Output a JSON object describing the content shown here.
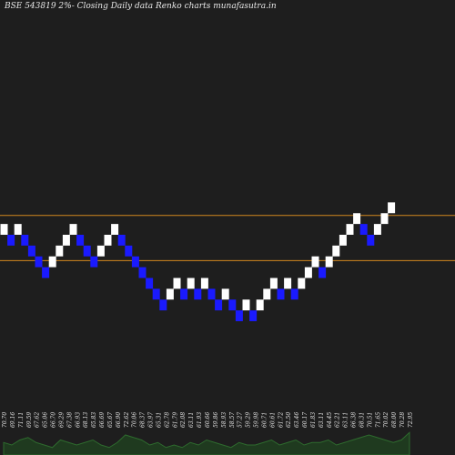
{
  "chart_data": {
    "type": "renko",
    "title": "BSE 543819 2%-  Closing Daily data  Renko  charts munafasutra.in",
    "colors": {
      "background": "#1e1e1e",
      "up_brick": "#ffffff",
      "down_brick": "#1a1aff",
      "hline": "#d2881e",
      "volume": "#1f3a1f",
      "volume_line": "#2e6b2e",
      "text": "#e8e8e8"
    },
    "bricks": [
      {
        "dir": "up",
        "price": 70.15
      },
      {
        "dir": "down",
        "price": 68.75
      },
      {
        "dir": "up",
        "price": 70.15
      },
      {
        "dir": "down",
        "price": 68.75
      },
      {
        "dir": "down",
        "price": 67.35
      },
      {
        "dir": "down",
        "price": 65.95
      },
      {
        "dir": "down",
        "price": 64.55
      },
      {
        "dir": "up",
        "price": 65.95
      },
      {
        "dir": "up",
        "price": 67.35
      },
      {
        "dir": "up",
        "price": 68.75
      },
      {
        "dir": "up",
        "price": 70.15
      },
      {
        "dir": "down",
        "price": 68.75
      },
      {
        "dir": "down",
        "price": 67.35
      },
      {
        "dir": "down",
        "price": 65.95
      },
      {
        "dir": "up",
        "price": 67.35
      },
      {
        "dir": "up",
        "price": 68.75
      },
      {
        "dir": "up",
        "price": 70.15
      },
      {
        "dir": "down",
        "price": 68.75
      },
      {
        "dir": "down",
        "price": 67.35
      },
      {
        "dir": "down",
        "price": 65.95
      },
      {
        "dir": "down",
        "price": 64.55
      },
      {
        "dir": "down",
        "price": 63.15
      },
      {
        "dir": "down",
        "price": 61.75
      },
      {
        "dir": "down",
        "price": 60.35
      },
      {
        "dir": "up",
        "price": 61.75
      },
      {
        "dir": "up",
        "price": 63.15
      },
      {
        "dir": "down",
        "price": 61.75
      },
      {
        "dir": "up",
        "price": 63.15
      },
      {
        "dir": "down",
        "price": 61.75
      },
      {
        "dir": "up",
        "price": 63.15
      },
      {
        "dir": "down",
        "price": 61.75
      },
      {
        "dir": "down",
        "price": 60.35
      },
      {
        "dir": "up",
        "price": 61.75
      },
      {
        "dir": "down",
        "price": 60.35
      },
      {
        "dir": "down",
        "price": 58.95
      },
      {
        "dir": "up",
        "price": 60.35
      },
      {
        "dir": "down",
        "price": 58.95
      },
      {
        "dir": "up",
        "price": 60.35
      },
      {
        "dir": "up",
        "price": 61.75
      },
      {
        "dir": "up",
        "price": 63.15
      },
      {
        "dir": "down",
        "price": 61.75
      },
      {
        "dir": "up",
        "price": 63.15
      },
      {
        "dir": "down",
        "price": 61.75
      },
      {
        "dir": "up",
        "price": 63.15
      },
      {
        "dir": "up",
        "price": 64.55
      },
      {
        "dir": "up",
        "price": 65.95
      },
      {
        "dir": "down",
        "price": 64.55
      },
      {
        "dir": "up",
        "price": 65.95
      },
      {
        "dir": "up",
        "price": 67.35
      },
      {
        "dir": "up",
        "price": 68.75
      },
      {
        "dir": "up",
        "price": 70.15
      },
      {
        "dir": "up",
        "price": 71.55
      },
      {
        "dir": "down",
        "price": 70.15
      },
      {
        "dir": "down",
        "price": 68.75
      },
      {
        "dir": "up",
        "price": 70.15
      },
      {
        "dir": "up",
        "price": 71.55
      },
      {
        "dir": "up",
        "price": 72.95
      }
    ],
    "hlines": [
      71.25,
      65.4
    ],
    "ylim": [
      52,
      98
    ],
    "x_tick_labels": [
      "70.70",
      "69.16",
      "71.11",
      "69.59",
      "67.62",
      "65.06",
      "66.70",
      "69.29",
      "67.38",
      "66.93",
      "68.13",
      "65.83",
      "66.69",
      "65.67",
      "66.90",
      "72.62",
      "70.06",
      "68.37",
      "63.97",
      "65.31",
      "62.78",
      "61.79",
      "62.08",
      "63.11",
      "61.93",
      "60.66",
      "59.86",
      "58.93",
      "58.57",
      "57.27",
      "59.29",
      "59.98",
      "60.71",
      "60.61",
      "61.72",
      "62.50",
      "63.46",
      "60.17",
      "61.83",
      "63.11",
      "64.45",
      "62.21",
      "63.11",
      "66.38",
      "68.31",
      "70.51",
      "71.65",
      "70.02",
      "68.00",
      "70.28",
      "72.95"
    ],
    "volume": [
      5,
      4,
      6,
      7,
      5,
      4,
      3,
      6,
      5,
      4,
      5,
      6,
      4,
      3,
      5,
      8,
      7,
      6,
      4,
      5,
      3,
      4,
      3,
      5,
      4,
      6,
      5,
      4,
      3,
      5,
      4,
      4,
      5,
      6,
      4,
      5,
      6,
      4,
      5,
      5,
      6,
      4,
      5,
      6,
      7,
      8,
      7,
      6,
      5,
      6,
      9
    ]
  }
}
